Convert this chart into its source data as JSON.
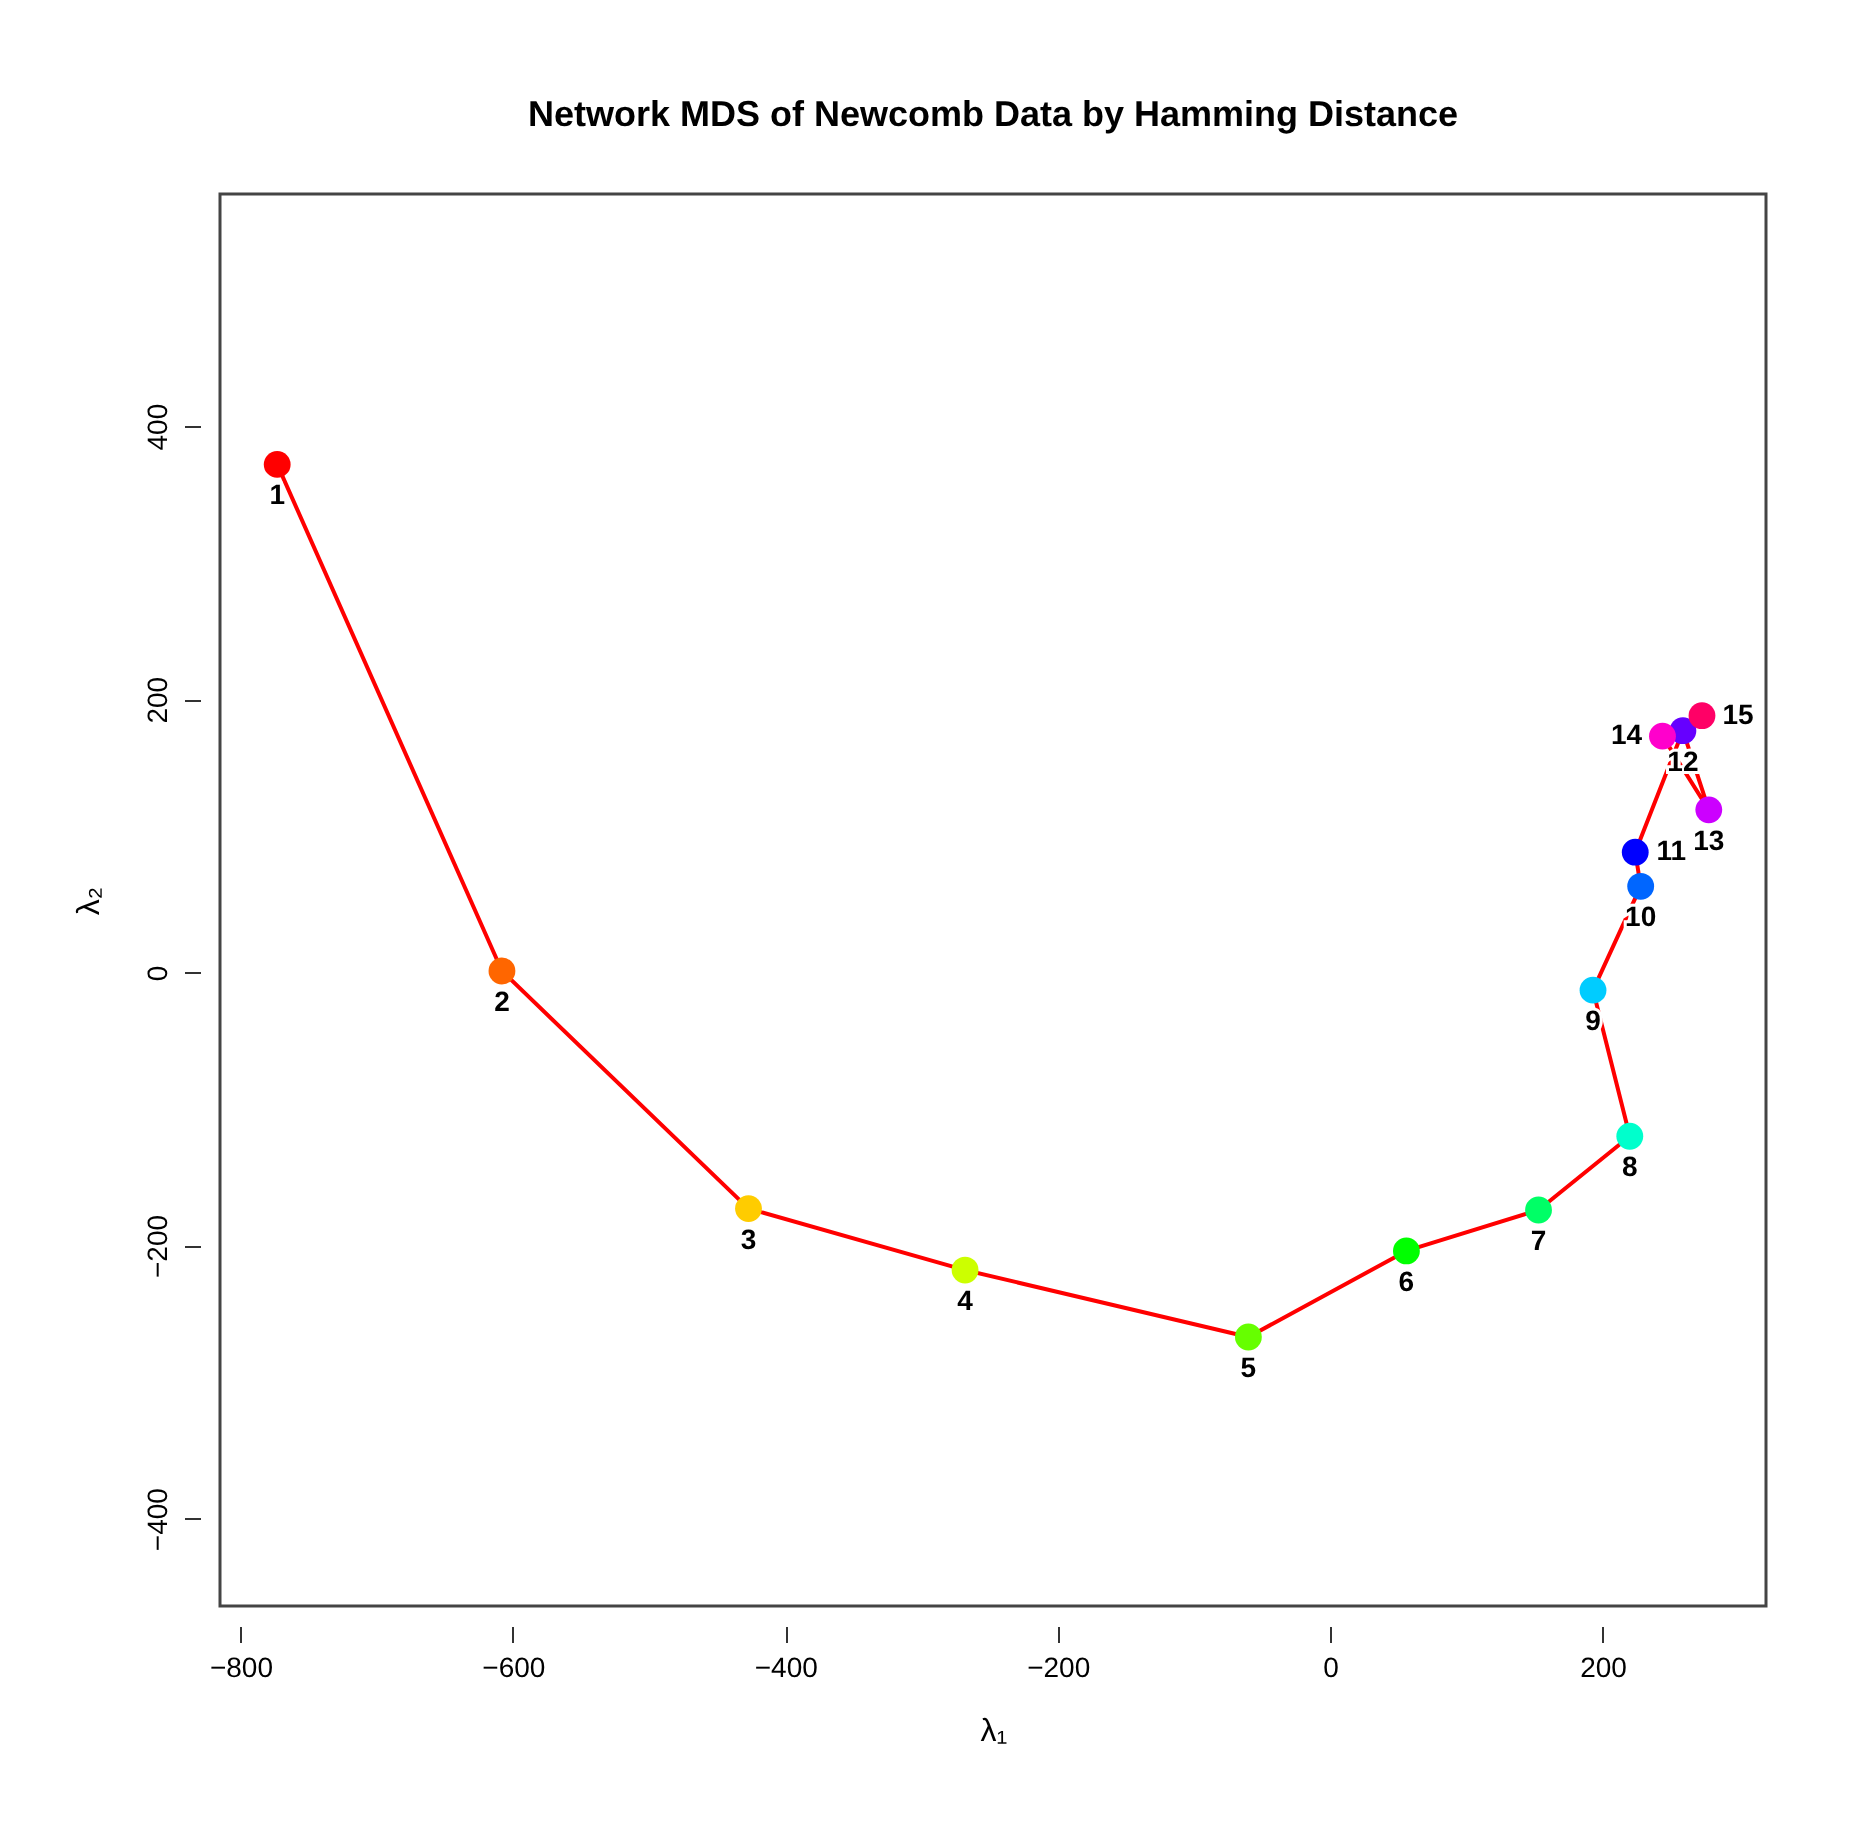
{
  "chart_data": {
    "type": "line",
    "title": "Network MDS of Newcomb Data by Hamming Distance",
    "xlabel": "λ₁",
    "ylabel": "λ₂",
    "xlim": [
      -815,
      320
    ],
    "ylim": [
      -464,
      570
    ],
    "xticks": [
      -800,
      -600,
      -400,
      -200,
      0,
      200
    ],
    "yticks": [
      -400,
      -200,
      0,
      200,
      400
    ],
    "grid": false,
    "marker": "circle",
    "line_style": "solid",
    "series": [
      {
        "color": "#ff0000",
        "x": [
          -773,
          -608,
          -427,
          -268,
          -60,
          56,
          153,
          220,
          193,
          228,
          224,
          259,
          278,
          244,
          273
        ],
        "values": [
          372,
          1,
          -173,
          -218,
          -267,
          -204,
          -174,
          -120,
          -13,
          63,
          88,
          177,
          119,
          173,
          188
        ],
        "colors": [
          "#ff0000",
          "#ff6600",
          "#ffcc00",
          "#ccff00",
          "#66ff00",
          "#00ff00",
          "#00ff66",
          "#00ffcc",
          "#00ccff",
          "#0066ff",
          "#0000ff",
          "#6600ff",
          "#cc00ff",
          "#ff00cc",
          "#ff0066"
        ]
      }
    ],
    "annotations": [
      {
        "text": "1",
        "x": -773,
        "y": 372
      },
      {
        "text": "2",
        "x": -608,
        "y": 1
      },
      {
        "text": "3",
        "x": -427,
        "y": -173
      },
      {
        "text": "4",
        "x": -268,
        "y": -218
      },
      {
        "text": "5",
        "x": -60,
        "y": -267
      },
      {
        "text": "6",
        "x": 56,
        "y": -204
      },
      {
        "text": "7",
        "x": 153,
        "y": -174
      },
      {
        "text": "8",
        "x": 220,
        "y": -120
      },
      {
        "text": "9",
        "x": 193,
        "y": -13
      },
      {
        "text": "10",
        "x": 228,
        "y": 63
      },
      {
        "text": "11",
        "x": 224,
        "y": 88
      },
      {
        "text": "12",
        "x": 259,
        "y": 177
      },
      {
        "text": "13",
        "x": 278,
        "y": 119
      },
      {
        "text": "14",
        "x": 244,
        "y": 173
      },
      {
        "text": "15",
        "x": 273,
        "y": 188
      }
    ]
  }
}
